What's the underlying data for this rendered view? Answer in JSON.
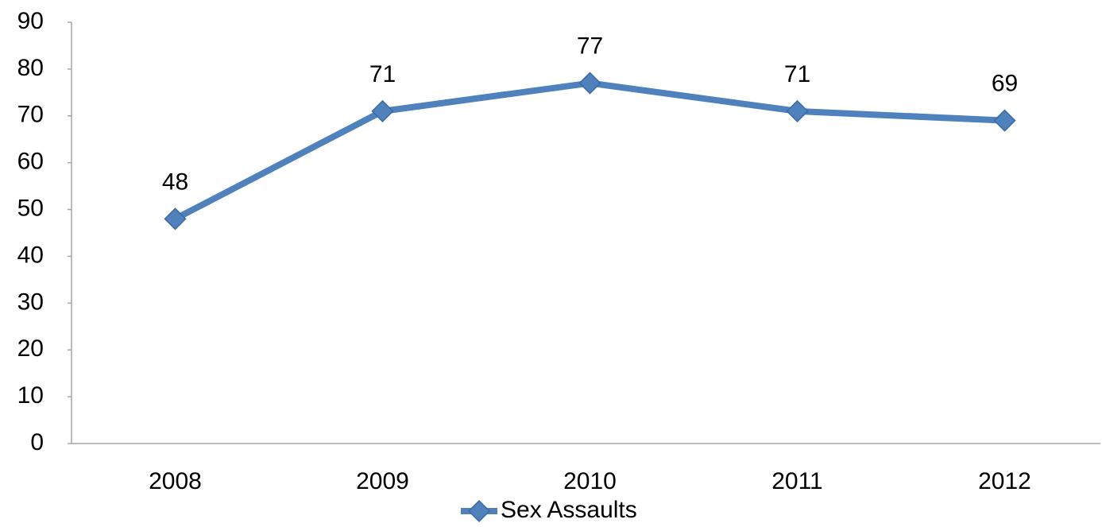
{
  "chart_data": {
    "type": "line",
    "categories": [
      "2008",
      "2009",
      "2010",
      "2011",
      "2012"
    ],
    "series": [
      {
        "name": "Sex Assaults",
        "color": "#4f81bd",
        "values": [
          48,
          71,
          77,
          71,
          69
        ]
      }
    ],
    "ylim": [
      0,
      90
    ],
    "yticks": [
      0,
      10,
      20,
      30,
      40,
      50,
      60,
      70,
      80,
      90
    ],
    "grid": false,
    "legend": "bottom",
    "data_labels": true
  }
}
